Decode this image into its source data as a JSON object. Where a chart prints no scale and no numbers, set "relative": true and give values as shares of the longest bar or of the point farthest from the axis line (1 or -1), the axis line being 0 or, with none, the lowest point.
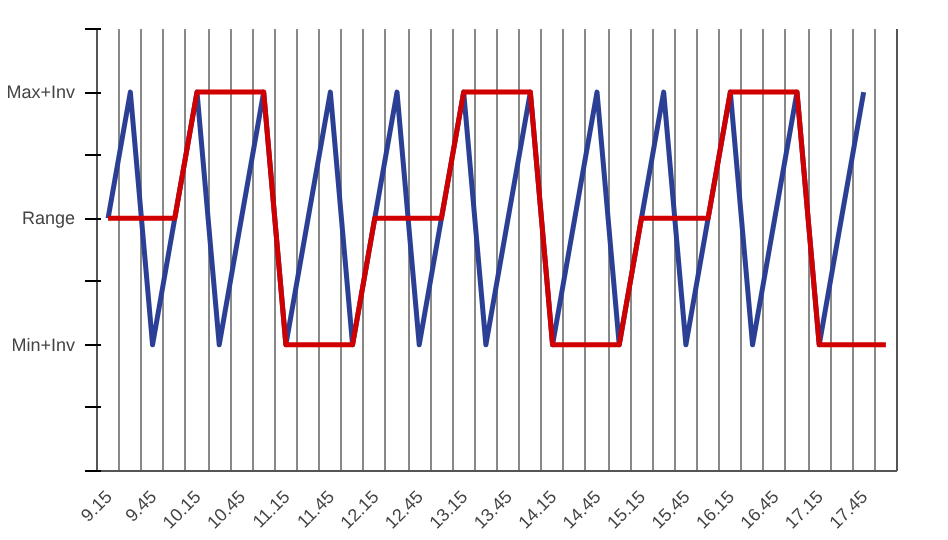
{
  "chart_data": {
    "type": "line",
    "relative": true,
    "categories": [
      "9.15",
      null,
      "9.45",
      null,
      "10.15",
      null,
      "10.45",
      null,
      "11.15",
      null,
      "11.45",
      null,
      "12.15",
      null,
      "12.45",
      null,
      "13.15",
      null,
      "13.45",
      null,
      "14.15",
      null,
      "14.45",
      null,
      "15.15",
      null,
      "15.45",
      null,
      "16.15",
      null,
      "16.45",
      null,
      "17.15",
      null,
      "17.45",
      null
    ],
    "series": [
      {
        "color": "#2b3f95",
        "values": [
          0.667,
          1,
          0.333,
          0.667,
          1,
          0.333,
          0.667,
          1,
          0.333,
          0.667,
          1,
          0.333,
          0.667,
          1,
          0.333,
          0.667,
          1,
          0.333,
          0.667,
          1,
          0.333,
          0.667,
          1,
          0.333,
          0.667,
          1,
          0.333,
          0.667,
          1,
          0.333,
          0.667,
          1,
          0.333,
          0.667,
          1,
          null
        ]
      },
      {
        "color": "#d00000",
        "values": [
          0.667,
          0.667,
          0.667,
          0.667,
          1,
          1,
          1,
          1,
          0.333,
          0.333,
          0.333,
          0.333,
          0.667,
          0.667,
          0.667,
          0.667,
          1,
          1,
          1,
          1,
          0.333,
          0.333,
          0.333,
          0.333,
          0.667,
          0.667,
          0.667,
          0.667,
          1,
          1,
          1,
          1,
          0.333,
          0.333,
          0.333,
          0.333
        ]
      }
    ],
    "annotations": [
      "Max+Inv",
      "Range",
      "Min+Inv"
    ],
    "grid": "x",
    "marker": "none",
    "line_style": "solid"
  }
}
